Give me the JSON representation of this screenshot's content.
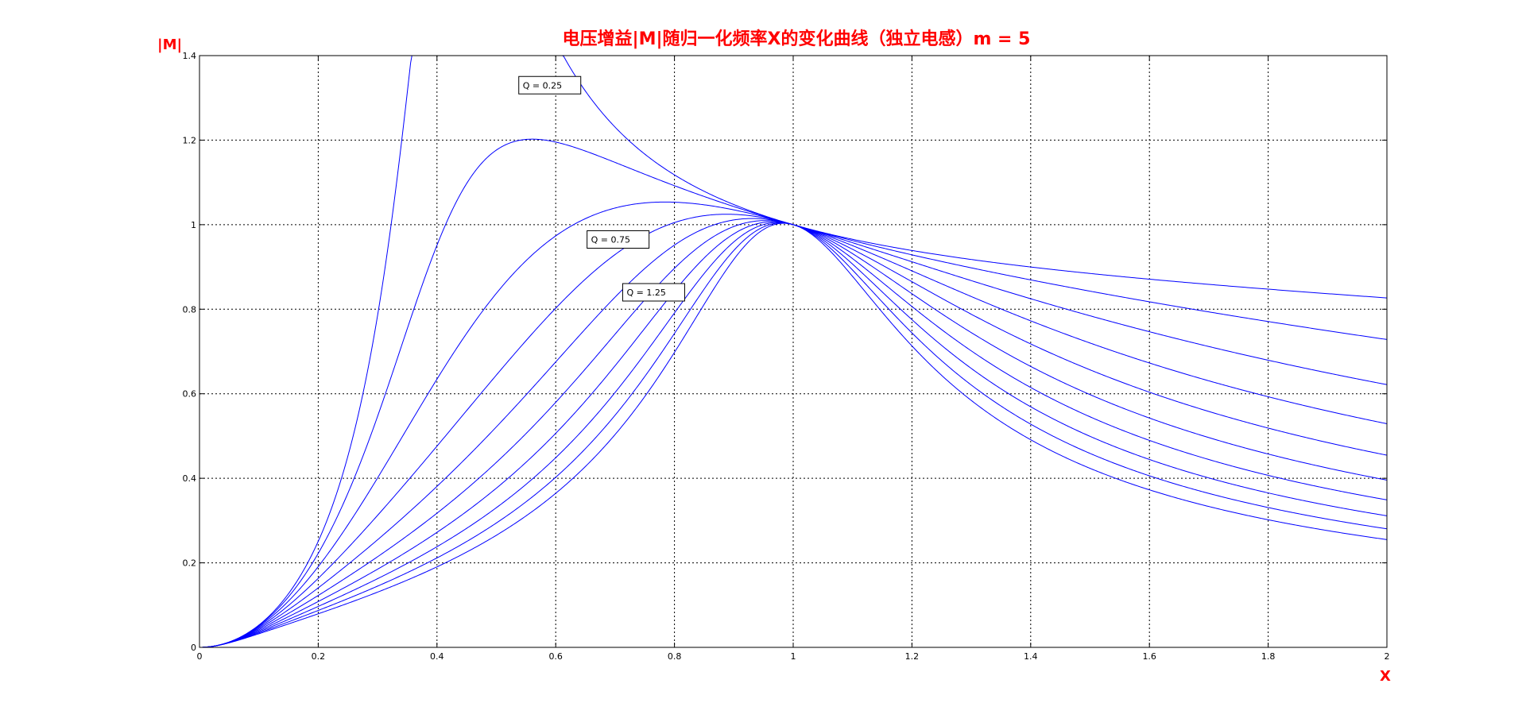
{
  "chart_data": {
    "type": "line",
    "title": "电压增益|M|随归一化频率X的变化曲线（独立电感）m = 5",
    "xlabel": "X",
    "ylabel": "|M|",
    "xlim": [
      0,
      2
    ],
    "ylim": [
      0,
      1.4
    ],
    "xticks": [
      0,
      0.2,
      0.4,
      0.6,
      0.8,
      1,
      1.2,
      1.4,
      1.6,
      1.8,
      2
    ],
    "xtick_labels": [
      "0",
      "0.2",
      "0.4",
      "0.6",
      "0.8",
      "1",
      "1.2",
      "1.4",
      "1.6",
      "1.8",
      "2"
    ],
    "yticks": [
      0,
      0.2,
      0.4,
      0.6,
      0.8,
      1,
      1.2,
      1.4
    ],
    "ytick_labels": [
      "0",
      "0.2",
      "0.4",
      "0.6",
      "0.8",
      "1",
      "1.2",
      "1.4"
    ],
    "grid": true,
    "line_color": "#0000ff",
    "title_color": "#ff0000",
    "m": 5,
    "q_values": [
      0.25,
      0.5,
      0.75,
      1.0,
      1.25,
      1.5,
      1.75,
      2.0,
      2.25,
      2.5
    ],
    "annotations": [
      {
        "text": "Q = 0.25",
        "x": 0.59,
        "y": 1.33
      },
      {
        "text": "Q = 0.75",
        "x": 0.705,
        "y": 0.965
      },
      {
        "text": "Q = 1.25",
        "x": 0.765,
        "y": 0.84
      }
    ]
  }
}
